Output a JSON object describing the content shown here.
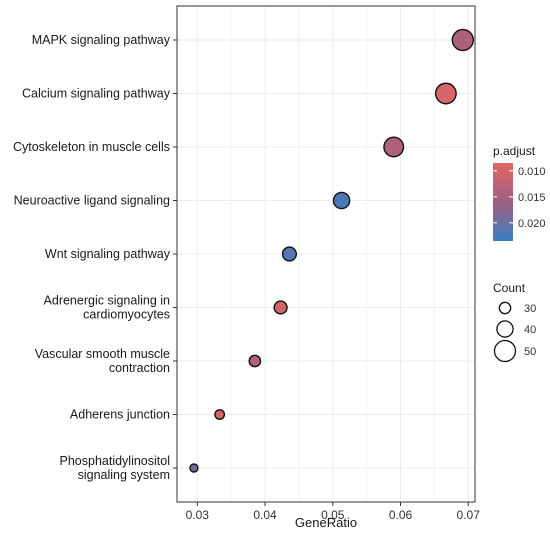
{
  "chart_data": {
    "type": "scatter",
    "title": "",
    "xlabel": "GeneRatio",
    "ylabel": "",
    "xlim": [
      0.027,
      0.071
    ],
    "x_ticks": [
      0.03,
      0.04,
      0.05,
      0.06,
      0.07
    ],
    "x_tick_labels": [
      "0.03",
      "0.04",
      "0.05",
      "0.06",
      "0.07"
    ],
    "grid": true,
    "legend_position": "right",
    "categories": [
      {
        "label": [
          "MAPK signaling pathway"
        ],
        "x": 0.0692,
        "count": 50,
        "p_adjust": 0.0145
      },
      {
        "label": [
          "Calcium signaling pathway"
        ],
        "x": 0.0667,
        "count": 49,
        "p_adjust": 0.0095
      },
      {
        "label": [
          "Cytoskeleton in muscle cells"
        ],
        "x": 0.059,
        "count": 47,
        "p_adjust": 0.0143
      },
      {
        "label": [
          "Neuroactive ligand signaling"
        ],
        "x": 0.0513,
        "count": 40,
        "p_adjust": 0.0222
      },
      {
        "label": [
          "Wnt signaling pathway"
        ],
        "x": 0.0436,
        "count": 35,
        "p_adjust": 0.0215
      },
      {
        "label": [
          "Adrenergic signaling in",
          "cardiomyocytes"
        ],
        "x": 0.0423,
        "count": 33,
        "p_adjust": 0.0102
      },
      {
        "label": [
          "Vascular smooth muscle",
          "contraction"
        ],
        "x": 0.0385,
        "count": 30,
        "p_adjust": 0.0138
      },
      {
        "label": [
          "Adherens junction"
        ],
        "x": 0.0333,
        "count": 26,
        "p_adjust": 0.0095
      },
      {
        "label": [
          "Phosphatidylinositol",
          "signaling system"
        ],
        "x": 0.0295,
        "count": 23,
        "p_adjust": 0.0195
      }
    ],
    "color_legend": {
      "title": "p.adjust",
      "range": [
        0.0085,
        0.0235
      ],
      "ticks": [
        0.01,
        0.015,
        0.02
      ],
      "tick_labels": [
        "0.010",
        "0.015",
        "0.020"
      ],
      "low_color": "#e06666",
      "high_color": "#3a7fc1"
    },
    "size_legend": {
      "title": "Count",
      "values": [
        30,
        40,
        50
      ],
      "labels": [
        "30",
        "40",
        "50"
      ]
    }
  }
}
